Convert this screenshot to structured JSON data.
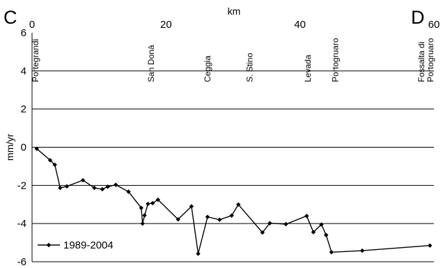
{
  "chart_data": {
    "type": "line",
    "xlabel": "km",
    "ylabel": "mm/yr",
    "xlim": [
      0,
      60
    ],
    "ylim": [
      -6,
      6
    ],
    "x_ticks": [
      "0",
      "20",
      "40",
      "60"
    ],
    "y_ticks": [
      "-6",
      "-4",
      "-2",
      "0",
      "2",
      "4",
      "6"
    ],
    "y_gridlines": [
      -6,
      -4,
      -2,
      0,
      2,
      4
    ],
    "corner_labels": {
      "left": "C",
      "right": "D"
    },
    "locations": [
      {
        "name": "Portegrandi",
        "km": 0.5
      },
      {
        "name": "San Donà",
        "km": 17.8
      },
      {
        "name": "Ceggia",
        "km": 26.2
      },
      {
        "name": "S. Stino",
        "km": 32.5
      },
      {
        "name": "Levada",
        "km": 41.2
      },
      {
        "name": "Portogruaro",
        "km": 45.3
      },
      {
        "name": "Fossalta di Portogruaro",
        "km": 58.8
      }
    ],
    "legend": {
      "position": "bottom-left",
      "entries": [
        "1989-2004"
      ]
    },
    "series": [
      {
        "name": "1989-2004",
        "color": "#000000",
        "marker": "diamond",
        "points": [
          [
            0.7,
            -0.08
          ],
          [
            2.7,
            -0.68
          ],
          [
            3.4,
            -0.92
          ],
          [
            4.2,
            -2.13
          ],
          [
            5.2,
            -2.05
          ],
          [
            7.6,
            -1.73
          ],
          [
            9.3,
            -2.13
          ],
          [
            10.5,
            -2.2
          ],
          [
            11.3,
            -2.07
          ],
          [
            12.5,
            -1.97
          ],
          [
            14.4,
            -2.33
          ],
          [
            16.3,
            -3.18
          ],
          [
            16.5,
            -4.0
          ],
          [
            16.8,
            -3.57
          ],
          [
            17.3,
            -2.97
          ],
          [
            18.0,
            -2.93
          ],
          [
            18.8,
            -2.75
          ],
          [
            21.8,
            -3.78
          ],
          [
            23.8,
            -3.1
          ],
          [
            24.8,
            -5.58
          ],
          [
            26.2,
            -3.65
          ],
          [
            28.0,
            -3.8
          ],
          [
            29.8,
            -3.58
          ],
          [
            30.8,
            -3.0
          ],
          [
            34.4,
            -4.47
          ],
          [
            35.5,
            -3.98
          ],
          [
            37.9,
            -4.03
          ],
          [
            41.0,
            -3.6
          ],
          [
            42.0,
            -4.45
          ],
          [
            43.2,
            -4.05
          ],
          [
            43.9,
            -4.6
          ],
          [
            44.7,
            -5.5
          ],
          [
            49.3,
            -5.42
          ],
          [
            59.4,
            -5.15
          ]
        ]
      }
    ]
  }
}
